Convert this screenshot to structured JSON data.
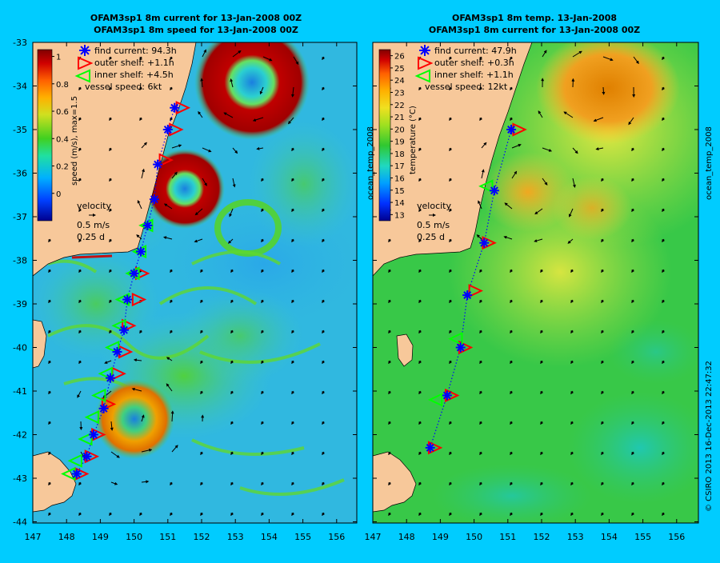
{
  "colors": {
    "background": "#00ccff",
    "land": "#f7c89a",
    "find_current_marker": "#0000ff",
    "outer_shelf_marker": "#ff0000",
    "inner_shelf_marker": "#00ff00",
    "vector_arrows": "#000000"
  },
  "x_tick_labels": [
    "147",
    "148",
    "149",
    "150",
    "151",
    "152",
    "153",
    "154",
    "155",
    "156"
  ],
  "y_tick_labels": [
    "-33",
    "-34",
    "-35",
    "-36",
    "-37",
    "-38",
    "-39",
    "-40",
    "-41",
    "-42",
    "-43",
    "-44"
  ],
  "panels": [
    {
      "title_line1": "OFAM3sp1 8m current for 13-Jan-2008 00Z",
      "title_line2": "OFAM3sp1 8m speed for 13-Jan-2008 00Z",
      "legend": [
        {
          "marker": "asterisk",
          "label": "find current: 94.3h"
        },
        {
          "marker": "triangle-right",
          "label": "outer shelf: +1.1h"
        },
        {
          "marker": "triangle-left",
          "label": "inner shelf: +4.5h"
        },
        {
          "marker": "none",
          "label": "vessel speed: 6kt"
        }
      ],
      "colorbar_label": "speed (m/s), max=1.5",
      "colorbar_ticks": [
        "1",
        "0.8",
        "0.6",
        "0.4",
        "0.2",
        "0"
      ],
      "velocity_key": {
        "title": "velocity",
        "line1": "0.5 m/s",
        "line2": "0.25 d"
      }
    },
    {
      "title_line1": "OFAM3sp1 8m temp. 13-Jan-2008",
      "title_line2": "OFAM3sp1 8m current for 13-Jan-2008 00Z",
      "legend": [
        {
          "marker": "asterisk",
          "label": "find current: 47.9h"
        },
        {
          "marker": "triangle-right",
          "label": "outer shelf: +0.3h"
        },
        {
          "marker": "triangle-left",
          "label": "inner shelf: +1.1h"
        },
        {
          "marker": "none",
          "label": "vessel speed: 12kt"
        }
      ],
      "colorbar_label": "temperature (°C)",
      "colorbar_side_label": "ocean_temp_2008",
      "colorbar_ticks": [
        "26",
        "25",
        "24",
        "23",
        "22",
        "21",
        "20",
        "19",
        "18",
        "17",
        "16",
        "15",
        "14",
        "13"
      ],
      "velocity_key": {
        "title": "velocity",
        "line1": "0.5 m/s",
        "line2": "0.25 d"
      }
    }
  ],
  "right_side_labels": {
    "top": "ocean_temp_2008",
    "bottom": "© CSIRO 2013   16-Dec-2013 22:47:32"
  },
  "chart_data": [
    {
      "type": "heatmap",
      "title": "OFAM3sp1 8m current for 13-Jan-2008 00Z / OFAM3sp1 8m speed for 13-Jan-2008 00Z",
      "xlim": [
        147,
        156.6
      ],
      "ylim": [
        -44,
        -33
      ],
      "colorbar_range": [
        -0.2,
        1.05
      ],
      "features": [
        {
          "name": "eddy",
          "lon": 153.8,
          "lat": -34.2,
          "speed": 1.0
        },
        {
          "name": "eddy",
          "lon": 151.3,
          "lat": -36.4,
          "speed": 1.0
        },
        {
          "name": "eddy",
          "lon": 150.2,
          "lat": -41.8,
          "speed": 0.65
        }
      ],
      "track_find_current": [
        [
          151.2,
          -34.5
        ],
        [
          151.0,
          -35.0
        ],
        [
          150.7,
          -35.8
        ],
        [
          150.6,
          -36.6
        ],
        [
          150.4,
          -37.2
        ],
        [
          150.2,
          -37.8
        ],
        [
          150.0,
          -38.3
        ],
        [
          149.8,
          -38.9
        ],
        [
          149.7,
          -39.6
        ],
        [
          149.5,
          -40.1
        ],
        [
          149.3,
          -40.7
        ],
        [
          149.1,
          -41.4
        ],
        [
          148.8,
          -42.0
        ],
        [
          148.6,
          -42.5
        ],
        [
          148.3,
          -42.9
        ]
      ],
      "track_outer_shelf": [
        [
          151.4,
          -34.5
        ],
        [
          151.2,
          -35.0
        ],
        [
          150.9,
          -35.7
        ],
        [
          150.2,
          -38.3
        ],
        [
          150.1,
          -38.9
        ],
        [
          149.8,
          -39.5
        ],
        [
          149.7,
          -40.1
        ],
        [
          149.5,
          -40.6
        ],
        [
          149.2,
          -41.3
        ],
        [
          148.9,
          -42.0
        ],
        [
          148.7,
          -42.5
        ],
        [
          148.4,
          -42.9
        ]
      ],
      "track_inner_shelf": [
        [
          150.4,
          -37.2
        ],
        [
          150.2,
          -37.8
        ],
        [
          150.0,
          -38.3
        ],
        [
          149.7,
          -38.9
        ],
        [
          149.6,
          -39.5
        ],
        [
          149.4,
          -40.0
        ],
        [
          149.2,
          -40.6
        ],
        [
          149.0,
          -41.1
        ],
        [
          148.8,
          -41.6
        ],
        [
          148.6,
          -42.1
        ],
        [
          148.3,
          -42.6
        ],
        [
          148.1,
          -42.9
        ]
      ]
    },
    {
      "type": "heatmap",
      "title": "OFAM3sp1 8m temp. 13-Jan-2008 / OFAM3sp1 8m current for 13-Jan-2008 00Z",
      "xlim": [
        147,
        156.6
      ],
      "ylim": [
        -44,
        -33
      ],
      "colorbar_range": [
        12.5,
        26.5
      ],
      "features": [
        {
          "name": "warm eddy",
          "lon": 153.8,
          "lat": -34.5,
          "temperature": 25
        },
        {
          "name": "warm eddy",
          "lon": 151.5,
          "lat": -36.2,
          "temperature": 23.5
        },
        {
          "name": "cool water",
          "lon": 154.0,
          "lat": -42.5,
          "temperature": 17
        }
      ],
      "track_find_current": [
        [
          151.1,
          -35.0
        ],
        [
          150.6,
          -36.4
        ],
        [
          150.3,
          -37.6
        ],
        [
          149.8,
          -38.8
        ],
        [
          149.6,
          -40.0
        ],
        [
          149.2,
          -41.1
        ],
        [
          148.7,
          -42.3
        ]
      ],
      "track_outer_shelf": [
        [
          151.3,
          -35.0
        ],
        [
          150.4,
          -37.6
        ],
        [
          150.0,
          -38.7
        ],
        [
          149.7,
          -40.0
        ],
        [
          149.3,
          -41.1
        ],
        [
          148.8,
          -42.3
        ]
      ],
      "track_inner_shelf": [
        [
          150.4,
          -36.3
        ],
        [
          149.5,
          -39.8
        ],
        [
          148.9,
          -41.2
        ]
      ]
    }
  ]
}
